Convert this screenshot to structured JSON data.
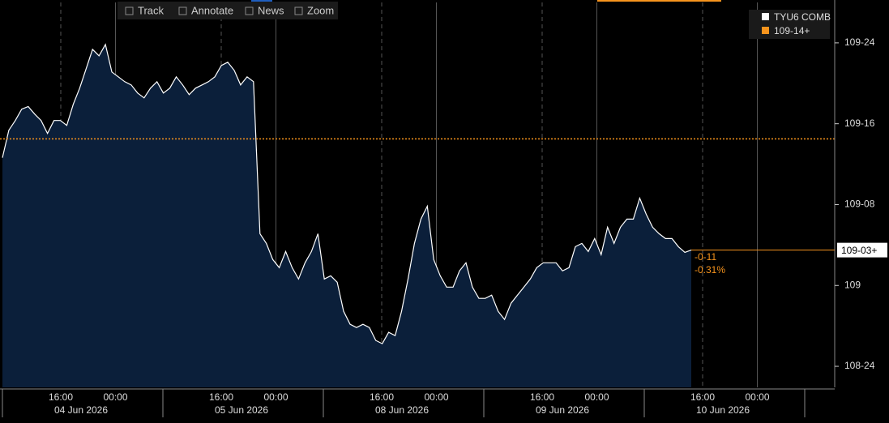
{
  "chart_data": {
    "type": "area",
    "toolbar": [
      "Track",
      "Annotate",
      "News",
      "Zoom"
    ],
    "series": [
      {
        "name": "TYU6 COMB",
        "color": "#ffffff",
        "fill": "#0b1f3a",
        "values": [
          109.395,
          109.48,
          109.51,
          109.545,
          109.553,
          109.53,
          109.51,
          109.47,
          109.51,
          109.51,
          109.495,
          109.56,
          109.61,
          109.67,
          109.73,
          109.71,
          109.745,
          109.66,
          109.645,
          109.63,
          109.62,
          109.595,
          109.58,
          109.61,
          109.63,
          109.595,
          109.61,
          109.645,
          109.62,
          109.59,
          109.61,
          109.62,
          109.63,
          109.645,
          109.68,
          109.69,
          109.665,
          109.62,
          109.645,
          109.63,
          109.16,
          109.13,
          109.08,
          109.055,
          109.105,
          109.055,
          109.02,
          109.07,
          109.105,
          109.16,
          109.02,
          109.03,
          109.01,
          108.92,
          108.88,
          108.87,
          108.88,
          108.87,
          108.83,
          108.82,
          108.855,
          108.845,
          108.92,
          109.02,
          109.13,
          109.205,
          109.245,
          109.08,
          109.03,
          108.995,
          108.995,
          109.045,
          109.07,
          108.995,
          108.96,
          108.96,
          108.97,
          108.92,
          108.895,
          108.945,
          108.97,
          108.995,
          109.02,
          109.055,
          109.07,
          109.07,
          109.07,
          109.045,
          109.055,
          109.12,
          109.13,
          109.105,
          109.145,
          109.095,
          109.18,
          109.13,
          109.18,
          109.205,
          109.205,
          109.27,
          109.22,
          109.18,
          109.16,
          109.145,
          109.145,
          109.12,
          109.1025,
          109.109375
        ]
      }
    ],
    "reference_line": {
      "name": "109-14+",
      "value": 109.453125,
      "color": "#f7941d"
    },
    "last": {
      "value": 109.109375,
      "label": "109-03+"
    },
    "change": {
      "value": -0.34375,
      "label": "-0-11"
    },
    "change_pct": {
      "value": -0.31,
      "label": "-0.31%"
    },
    "ylim": [
      108.685,
      109.875
    ],
    "yticks": [
      {
        "value": 108.75,
        "label": "108-24"
      },
      109,
      {
        "value": 109.25,
        "label": "109-08"
      },
      {
        "value": 109.5,
        "label": "109-16"
      },
      {
        "value": 109.75,
        "label": "109-24"
      }
    ],
    "x_time_labels": [
      "16:00",
      "00:00",
      "16:00",
      "00:00",
      "16:00",
      "00:00",
      "16:00",
      "00:00",
      "16:00",
      "00:00"
    ],
    "x_day_labels": [
      "04 Jun 2026",
      "05 Jun 2026",
      "08 Jun 2026",
      "09 Jun 2026",
      "10 Jun 2026"
    ]
  }
}
